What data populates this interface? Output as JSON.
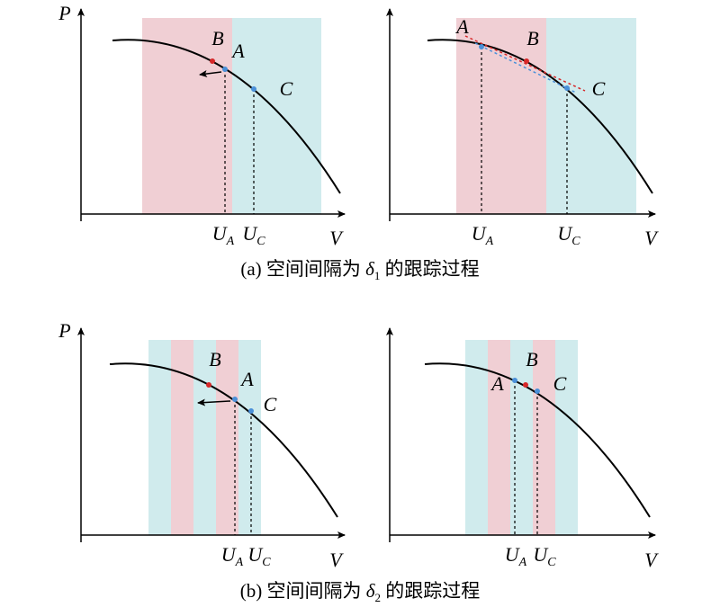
{
  "panels": [
    {
      "y_axis": "P",
      "x_axis": "V",
      "points": [
        {
          "label": "B"
        },
        {
          "label": "A"
        },
        {
          "label": "C"
        }
      ],
      "u_labels": [
        {
          "main": "U",
          "sub": "A"
        },
        {
          "main": "U",
          "sub": "C"
        }
      ]
    },
    {
      "x_axis": "V",
      "points": [
        {
          "label": "A"
        },
        {
          "label": "B"
        },
        {
          "label": "C"
        }
      ],
      "u_labels": [
        {
          "main": "U",
          "sub": "A"
        },
        {
          "main": "U",
          "sub": "C"
        }
      ]
    },
    {
      "y_axis": "P",
      "x_axis": "V",
      "points": [
        {
          "label": "B"
        },
        {
          "label": "A"
        },
        {
          "label": "C"
        }
      ],
      "u_labels": [
        {
          "main": "U",
          "sub": "A"
        },
        {
          "main": "U",
          "sub": "C"
        }
      ]
    },
    {
      "x_axis": "V",
      "points": [
        {
          "label": "A"
        },
        {
          "label": "B"
        },
        {
          "label": "C"
        }
      ],
      "u_labels": [
        {
          "main": "U",
          "sub": "A"
        },
        {
          "main": "U",
          "sub": "C"
        }
      ]
    }
  ],
  "captions": [
    {
      "prefix": "(a) 空间间隔为 ",
      "symbol": "δ",
      "sub": "1",
      "suffix": " 的跟踪过程"
    },
    {
      "prefix": "(b) 空间间隔为 ",
      "symbol": "δ",
      "sub": "2",
      "suffix": " 的跟踪过程"
    }
  ]
}
